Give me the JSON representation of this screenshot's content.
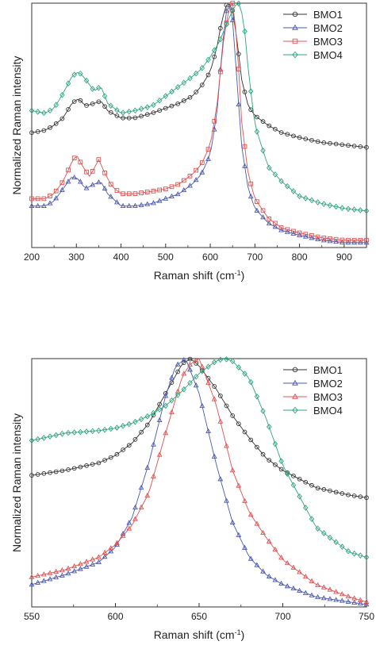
{
  "chart_data": [
    {
      "type": "line",
      "xlabel": "Raman shift (cm",
      "xlabel_sup": "-1",
      "xlabel_close": ")",
      "ylabel": "Normalized Raman intensity",
      "xlim": [
        200,
        950
      ],
      "ylim": [
        0,
        1.0
      ],
      "xticks": [
        200,
        300,
        400,
        500,
        600,
        700,
        800,
        900
      ],
      "grid": false,
      "legend_position": "top-right",
      "series": [
        {
          "name": "BMO1",
          "color": "#333333",
          "marker": "circle",
          "x": [
            200,
            230,
            250,
            270,
            290,
            305,
            320,
            340,
            355,
            370,
            400,
            430,
            470,
            500,
            530,
            560,
            580,
            600,
            615,
            625,
            635,
            642,
            650,
            660,
            670,
            685,
            700,
            730,
            760,
            800,
            850,
            900,
            950
          ],
          "y": [
            0.47,
            0.48,
            0.5,
            0.53,
            0.59,
            0.61,
            0.58,
            0.59,
            0.6,
            0.56,
            0.53,
            0.53,
            0.55,
            0.57,
            0.59,
            0.62,
            0.66,
            0.72,
            0.82,
            0.92,
            0.99,
            1.0,
            0.97,
            0.85,
            0.69,
            0.58,
            0.54,
            0.5,
            0.47,
            0.45,
            0.43,
            0.42,
            0.41
          ]
        },
        {
          "name": "BMO2",
          "color": "#4a58b0",
          "marker": "triangle",
          "x": [
            200,
            230,
            250,
            270,
            290,
            305,
            320,
            340,
            355,
            370,
            400,
            430,
            470,
            500,
            530,
            560,
            580,
            600,
            615,
            625,
            635,
            642,
            650,
            660,
            670,
            685,
            700,
            730,
            760,
            800,
            850,
            900,
            950
          ],
          "y": [
            0.17,
            0.17,
            0.19,
            0.24,
            0.29,
            0.28,
            0.24,
            0.26,
            0.27,
            0.22,
            0.17,
            0.17,
            0.18,
            0.2,
            0.22,
            0.26,
            0.3,
            0.38,
            0.55,
            0.78,
            0.96,
            1.0,
            0.93,
            0.68,
            0.42,
            0.24,
            0.16,
            0.1,
            0.07,
            0.05,
            0.03,
            0.02,
            0.02
          ]
        },
        {
          "name": "BMO3",
          "color": "#e05050",
          "marker": "square",
          "x": [
            200,
            230,
            250,
            270,
            290,
            300,
            315,
            330,
            350,
            365,
            380,
            400,
            430,
            470,
            500,
            530,
            560,
            580,
            600,
            615,
            630,
            642,
            650,
            660,
            670,
            685,
            700,
            730,
            760,
            800,
            850,
            900,
            950
          ],
          "y": [
            0.2,
            0.2,
            0.22,
            0.27,
            0.35,
            0.38,
            0.33,
            0.29,
            0.36,
            0.3,
            0.25,
            0.22,
            0.22,
            0.23,
            0.24,
            0.26,
            0.3,
            0.34,
            0.42,
            0.58,
            0.85,
            0.98,
            1.0,
            0.85,
            0.52,
            0.3,
            0.2,
            0.12,
            0.08,
            0.06,
            0.04,
            0.03,
            0.03
          ]
        },
        {
          "name": "BMO4",
          "color": "#2ea57a",
          "marker": "diamond",
          "x": [
            200,
            230,
            250,
            270,
            290,
            305,
            320,
            340,
            355,
            370,
            400,
            430,
            470,
            500,
            530,
            560,
            580,
            600,
            620,
            640,
            655,
            665,
            675,
            685,
            700,
            730,
            760,
            800,
            850,
            900,
            950
          ],
          "y": [
            0.56,
            0.55,
            0.57,
            0.63,
            0.7,
            0.72,
            0.69,
            0.64,
            0.66,
            0.59,
            0.55,
            0.56,
            0.58,
            0.62,
            0.66,
            0.7,
            0.73,
            0.78,
            0.84,
            0.93,
            0.99,
            1.0,
            0.93,
            0.73,
            0.5,
            0.33,
            0.27,
            0.21,
            0.18,
            0.16,
            0.15
          ]
        }
      ]
    },
    {
      "type": "line",
      "xlabel": "Raman shift (cm",
      "xlabel_sup": "-1",
      "xlabel_close": ")",
      "ylabel": "Normalized Raman intensity",
      "xlim": [
        550,
        750
      ],
      "ylim": [
        0,
        1.0
      ],
      "xticks": [
        550,
        600,
        650,
        700,
        750
      ],
      "grid": false,
      "legend_position": "top-right",
      "series": [
        {
          "name": "BMO1",
          "color": "#333333",
          "marker": "circle",
          "x": [
            550,
            570,
            590,
            600,
            610,
            620,
            630,
            640,
            645,
            650,
            660,
            670,
            680,
            690,
            700,
            720,
            740,
            750
          ],
          "y": [
            0.53,
            0.55,
            0.58,
            0.61,
            0.66,
            0.74,
            0.86,
            0.98,
            1.0,
            0.97,
            0.88,
            0.77,
            0.68,
            0.6,
            0.55,
            0.48,
            0.45,
            0.44
          ]
        },
        {
          "name": "BMO2",
          "color": "#4a58b0",
          "marker": "triangle",
          "x": [
            550,
            570,
            590,
            600,
            610,
            620,
            630,
            636,
            642,
            650,
            660,
            670,
            680,
            690,
            700,
            720,
            740,
            750
          ],
          "y": [
            0.09,
            0.13,
            0.18,
            0.24,
            0.36,
            0.58,
            0.85,
            0.97,
            1.0,
            0.86,
            0.58,
            0.34,
            0.2,
            0.13,
            0.09,
            0.04,
            0.02,
            0.01
          ]
        },
        {
          "name": "BMO3",
          "color": "#e05050",
          "marker": "triangle",
          "x": [
            550,
            570,
            590,
            600,
            610,
            620,
            630,
            640,
            645,
            650,
            660,
            670,
            680,
            690,
            700,
            720,
            740,
            750
          ],
          "y": [
            0.12,
            0.15,
            0.2,
            0.25,
            0.33,
            0.46,
            0.7,
            0.93,
            0.98,
            1.0,
            0.82,
            0.55,
            0.38,
            0.28,
            0.19,
            0.09,
            0.04,
            0.02
          ]
        },
        {
          "name": "BMO4",
          "color": "#2ea57a",
          "marker": "diamond",
          "x": [
            550,
            570,
            590,
            600,
            610,
            620,
            630,
            640,
            650,
            660,
            665,
            670,
            680,
            690,
            700,
            720,
            740,
            750
          ],
          "y": [
            0.67,
            0.7,
            0.71,
            0.72,
            0.74,
            0.77,
            0.81,
            0.87,
            0.94,
            0.99,
            1.0,
            0.99,
            0.92,
            0.76,
            0.57,
            0.32,
            0.22,
            0.2
          ]
        }
      ]
    }
  ]
}
